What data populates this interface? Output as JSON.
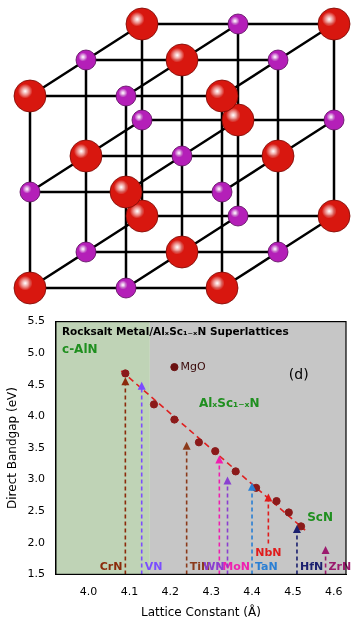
{
  "diagram": {
    "sites_per_edge": 3,
    "colors": [
      "#d8170f",
      "#b41fb8"
    ]
  },
  "chart_data": {
    "type": "scatter",
    "title": "Rocksalt Metal/AlₓSc₁₋ₓN Superlattices",
    "x_label": "Lattice Constant (Å)",
    "y_label": "Direct Bandgap (eV)",
    "xlim": [
      3.92,
      4.63
    ],
    "ylim": [
      1.5,
      5.5
    ],
    "xticks": [
      {
        "value": 4,
        "label": "4.0"
      },
      {
        "value": 4.1,
        "label": "4.1"
      },
      {
        "value": 4.2,
        "label": "4.2"
      },
      {
        "value": 4.3,
        "label": "4.3"
      },
      {
        "value": 4.4,
        "label": "4.4"
      },
      {
        "value": 4.5,
        "label": "4.5"
      },
      {
        "value": 4.6,
        "label": "4.6"
      }
    ],
    "yticks": [
      1.5,
      {
        "value": 2,
        "label": "2.0"
      },
      2.5,
      {
        "value": 3,
        "label": "3.0"
      },
      3.5,
      {
        "value": 4,
        "label": "4.0"
      },
      4.5,
      {
        "value": 5,
        "label": "5.0"
      },
      5.5
    ],
    "grid": false,
    "series": [
      {
        "x": [
          4.09,
          4.16,
          4.21,
          4.27,
          4.31,
          4.36,
          4.41,
          4.46,
          4.49,
          4.52
        ],
        "values": [
          4.68,
          4.19,
          3.95,
          3.59,
          3.45,
          3.13,
          2.87,
          2.66,
          2.48,
          2.26
        ],
        "color": "#8b1a1a",
        "marker": "circle",
        "line_style": "none"
      },
      {
        "x": [
          4.21
        ],
        "values": [
          4.78
        ],
        "color": "#6b1010",
        "marker": "circle",
        "line_style": "none"
      },
      {
        "x": [
          4.08,
          4.53
        ],
        "values": [
          4.72,
          2.2
        ],
        "color": "#e02020",
        "marker": "none",
        "line_style": "dashed"
      }
    ],
    "regions": [
      {
        "x": [
          3.92,
          4.15
        ],
        "color": "#bfd3b6"
      },
      {
        "x": [
          4.15,
          4.63
        ],
        "color": "#c6c6c6"
      }
    ],
    "arrows": [
      {
        "label": "CrN",
        "x": 4.09,
        "y": 4.62,
        "color": "#8b2a0a"
      },
      {
        "label": "VN",
        "x": 4.13,
        "y": 4.55,
        "color": "#7b4dff"
      },
      {
        "label": "TiN",
        "x": 4.24,
        "y": 3.6,
        "color": "#8b3a1a"
      },
      {
        "label": "MoN",
        "x": 4.32,
        "y": 3.38,
        "color": "#f01fb0"
      },
      {
        "label": "WN",
        "x": 4.34,
        "y": 3.05,
        "color": "#8a3fd1"
      },
      {
        "label": "TaN",
        "x": 4.4,
        "y": 2.95,
        "color": "#2a7fd4"
      },
      {
        "label": "NbN",
        "x": 4.44,
        "y": 2.78,
        "color": "#e01b1b"
      },
      {
        "label": "HfN",
        "x": 4.51,
        "y": 2.28,
        "color": "#1a1f6e"
      },
      {
        "label": "ZrN",
        "x": 4.58,
        "y": 1.95,
        "color": "#9b1a6e"
      }
    ],
    "annotations": [
      {
        "text": "c-AlN",
        "x": 3.935,
        "y": 5.05,
        "color": "#1f8f1f"
      },
      {
        "text": "MgO",
        "x": 4.225,
        "y": 4.78,
        "color": "#3a0a0a"
      },
      {
        "text": "AlₓSc₁₋ₓN",
        "x": 4.27,
        "y": 4.2,
        "color": "#1f8f1f"
      },
      {
        "text": "ScN",
        "x": 4.535,
        "y": 2.4,
        "color": "#1f8f1f"
      },
      {
        "text": "(d)",
        "x": 4.49,
        "y": 4.65,
        "color": "#000000"
      }
    ]
  }
}
